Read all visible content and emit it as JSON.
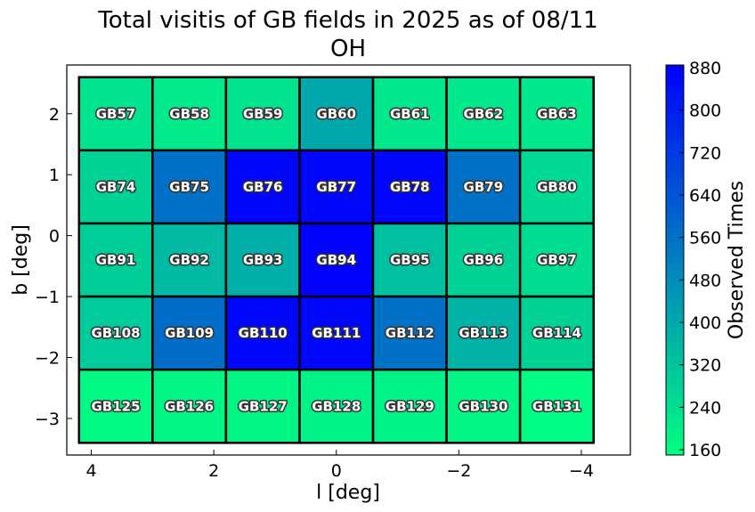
{
  "chart_data": {
    "type": "heatmap",
    "title": "Total visitis of GB fields in 2025 as of 08/11",
    "subtitle": "OH",
    "xlabel": "l [deg]",
    "ylabel": "b [deg]",
    "colorbar_label": "Observed Times",
    "x_ticks": [
      4,
      2,
      0,
      -2,
      -4
    ],
    "x_tick_labels": [
      "4",
      "2",
      "0",
      "−2",
      "−4"
    ],
    "y_ticks": [
      2,
      1,
      0,
      -1,
      -2,
      -3
    ],
    "y_tick_labels": [
      "2",
      "1",
      "0",
      "−1",
      "−2",
      "−3"
    ],
    "xlim": [
      4.4,
      -4.8
    ],
    "ylim": [
      -3.6,
      2.8
    ],
    "colorbar_ticks": [
      880,
      800,
      720,
      640,
      560,
      480,
      400,
      320,
      240,
      160
    ],
    "colorbar_range": [
      150,
      885
    ],
    "colormap": [
      "#00ff80",
      "#0000ff"
    ],
    "column_centers_l": [
      3.6,
      2.4,
      1.2,
      0.0,
      -1.2,
      -2.4,
      -3.6
    ],
    "row_centers_b": [
      2.0,
      0.8,
      -0.4,
      -1.6,
      -2.8
    ],
    "cell_width": 1.2,
    "cell_height": 1.2,
    "grid": false,
    "fields": [
      [
        "GB57",
        "GB58",
        "GB59",
        "GB60",
        "GB61",
        "GB62",
        "GB63"
      ],
      [
        "GB74",
        "GB75",
        "GB76",
        "GB77",
        "GB78",
        "GB79",
        "GB80"
      ],
      [
        "GB91",
        "GB92",
        "GB93",
        "GB94",
        "GB95",
        "GB96",
        "GB97"
      ],
      [
        "GB108",
        "GB109",
        "GB110",
        "GB111",
        "GB112",
        "GB113",
        "GB114"
      ],
      [
        "GB125",
        "GB126",
        "GB127",
        "GB128",
        "GB129",
        "GB130",
        "GB131"
      ]
    ],
    "values": [
      [
        230,
        210,
        230,
        400,
        220,
        220,
        220
      ],
      [
        280,
        560,
        870,
        870,
        870,
        560,
        260
      ],
      [
        290,
        350,
        380,
        880,
        330,
        280,
        250
      ],
      [
        300,
        570,
        870,
        870,
        560,
        370,
        280
      ],
      [
        170,
        180,
        180,
        190,
        190,
        180,
        160
      ]
    ]
  }
}
